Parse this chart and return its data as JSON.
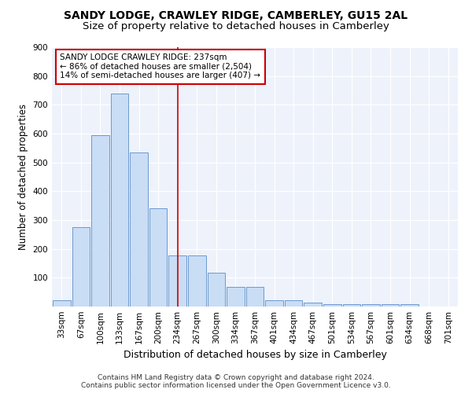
{
  "title1": "SANDY LODGE, CRAWLEY RIDGE, CAMBERLEY, GU15 2AL",
  "title2": "Size of property relative to detached houses in Camberley",
  "xlabel": "Distribution of detached houses by size in Camberley",
  "ylabel": "Number of detached properties",
  "categories": [
    "33sqm",
    "67sqm",
    "100sqm",
    "133sqm",
    "167sqm",
    "200sqm",
    "234sqm",
    "267sqm",
    "300sqm",
    "334sqm",
    "367sqm",
    "401sqm",
    "434sqm",
    "467sqm",
    "501sqm",
    "534sqm",
    "567sqm",
    "601sqm",
    "634sqm",
    "668sqm",
    "701sqm"
  ],
  "values": [
    22,
    275,
    595,
    740,
    535,
    340,
    178,
    178,
    118,
    68,
    68,
    22,
    22,
    13,
    9,
    9,
    9,
    9,
    9,
    0,
    0
  ],
  "bar_color": "#c9ddf5",
  "bar_edge_color": "#5b8dc8",
  "ref_line_index": 6,
  "ref_line_color": "#cc0000",
  "annotation_text": "SANDY LODGE CRAWLEY RIDGE: 237sqm\n← 86% of detached houses are smaller (2,504)\n14% of semi-detached houses are larger (407) →",
  "annotation_box_color": "#ffffff",
  "annotation_box_edge": "#cc0000",
  "ylim": [
    0,
    900
  ],
  "yticks": [
    0,
    100,
    200,
    300,
    400,
    500,
    600,
    700,
    800,
    900
  ],
  "footer1": "Contains HM Land Registry data © Crown copyright and database right 2024.",
  "footer2": "Contains public sector information licensed under the Open Government Licence v3.0.",
  "bg_color": "#edf2fb",
  "title1_fontsize": 10,
  "title2_fontsize": 9.5,
  "xlabel_fontsize": 9,
  "ylabel_fontsize": 8.5,
  "tick_fontsize": 7.5,
  "annotation_fontsize": 7.5,
  "footer_fontsize": 6.5
}
